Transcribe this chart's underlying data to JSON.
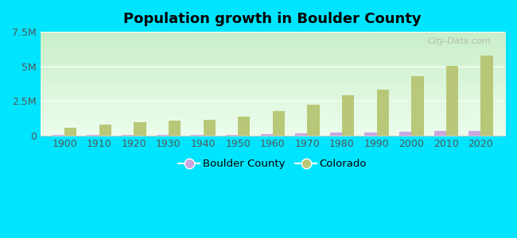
{
  "title": "Population growth in Boulder County",
  "years": [
    1900,
    1910,
    1920,
    1930,
    1940,
    1950,
    1960,
    1970,
    1980,
    1990,
    2000,
    2010,
    2020
  ],
  "boulder_county": [
    14000,
    20000,
    23000,
    24000,
    30000,
    40000,
    75000,
    132000,
    190000,
    225000,
    291000,
    295000,
    330000
  ],
  "colorado": [
    540000,
    800000,
    940000,
    1040000,
    1120000,
    1330000,
    1760000,
    2210000,
    2890000,
    3300000,
    4310000,
    5030000,
    5770000
  ],
  "boulder_color": "#c9a8e0",
  "colorado_color": "#b8c878",
  "outer_bg": "#00e5ff",
  "ylim": [
    0,
    7500000
  ],
  "yticks": [
    0,
    2500000,
    5000000,
    7500000
  ],
  "ytick_labels": [
    "0",
    "2.5M",
    "5M",
    "7.5M"
  ],
  "watermark": "City-Data.com",
  "bar_width": 0.35,
  "grad_top_color": "#c8efc8",
  "grad_bottom_color": "#edfded"
}
